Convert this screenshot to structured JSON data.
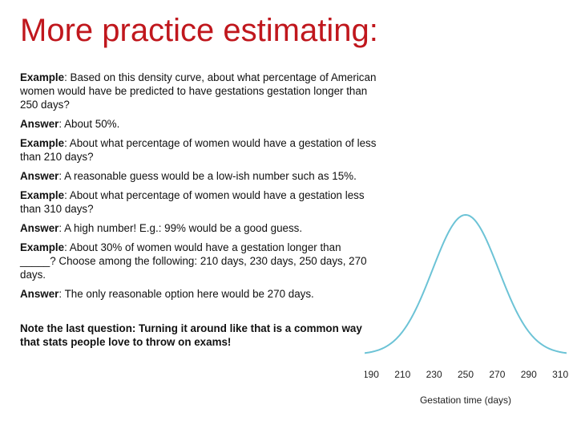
{
  "title": "More practice estimating:",
  "paragraphs": [
    {
      "label": "Example",
      "text": ": Based on this density curve, about what percentage of American women would have be predicted to have gestations gestation longer than 250 days?"
    },
    {
      "label": "Answer",
      "text": ": About 50%."
    },
    {
      "label": "Example",
      "text": ": About what percentage of women would have a gestation of less than 210 days?"
    },
    {
      "label": "Answer",
      "text": ": A reasonable guess would be a low-ish number such as 15%."
    },
    {
      "label": "Example",
      "text": ": About what percentage of women would have a gestation less than 310 days?"
    },
    {
      "label": "Answer",
      "text": ": A high number!  E.g.: 99% would be a good guess."
    },
    {
      "label": "Example",
      "text": ": About 30% of women would have a gestation longer than _____?  Choose among the following: 210 days, 230 days, 250 days, 270 days."
    },
    {
      "label": "Answer",
      "text": ": The only reasonable option here would be 270 days."
    }
  ],
  "note": "Note the last question: Turning it around like that is a common way that stats people love to throw on exams!",
  "chart_data": {
    "type": "line",
    "curve": "normal density",
    "mean": 250,
    "sd": 21,
    "x_ticks": [
      "190",
      "210",
      "230",
      "250",
      "270",
      "290",
      "310"
    ],
    "xlim": [
      186,
      314
    ],
    "xlabel": "Gestation time (days)",
    "line_color": "#6cc3d6"
  }
}
